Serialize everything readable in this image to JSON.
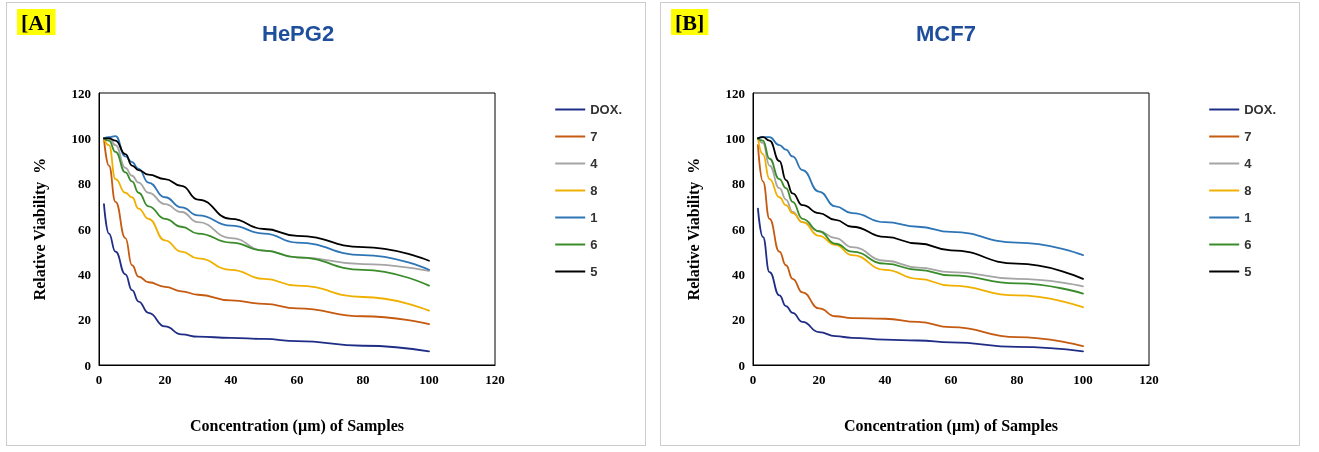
{
  "chart_data": [
    {
      "type": "line",
      "title": "HePG2",
      "xlabel": "Concentration (µm) of Samples",
      "ylabel": "Relative Viability  %",
      "annotations": [
        "[A]"
      ],
      "xlim": [
        0,
        120
      ],
      "xticks": [
        0,
        20,
        40,
        60,
        80,
        100,
        120
      ],
      "ylim": [
        0,
        120
      ],
      "yticks": [
        0,
        20,
        40,
        60,
        80,
        100,
        120
      ],
      "grid": false,
      "legend": "right",
      "marker": "none",
      "line_style": "solid",
      "x": [
        1.5,
        3,
        5,
        8,
        10,
        12,
        15,
        20,
        25,
        30,
        40,
        50,
        60,
        80,
        100
      ],
      "series": [
        {
          "name": "DOX.",
          "color": "#1f2d86",
          "values": [
            71,
            58,
            50,
            40,
            33,
            28,
            23,
            17,
            13.5,
            12.5,
            12,
            11.5,
            10.5,
            8.5,
            6
          ]
        },
        {
          "name": "7",
          "color": "#c55a11",
          "values": [
            100,
            88,
            72,
            56,
            44,
            39,
            36.5,
            34.5,
            32.5,
            31,
            28.5,
            27,
            25,
            21.5,
            18
          ]
        },
        {
          "name": "4",
          "color": "#a5a5a5",
          "values": [
            100,
            100,
            97,
            87,
            83.5,
            80.5,
            76,
            71,
            67.5,
            63,
            56,
            50.5,
            47.5,
            44.5,
            41.5
          ]
        },
        {
          "name": "8",
          "color": "#f0b000",
          "values": [
            100,
            97,
            82,
            76,
            74,
            69,
            64.5,
            55,
            50,
            47,
            42,
            38,
            35,
            30,
            24
          ]
        },
        {
          "name": "1",
          "color": "#2e75b6",
          "values": [
            100,
            100.5,
            101,
            92,
            89.5,
            86.5,
            80.5,
            74,
            69.5,
            66,
            61.5,
            58,
            54,
            48.5,
            42
          ]
        },
        {
          "name": "6",
          "color": "#3a8c2a",
          "values": [
            100,
            99,
            94,
            85,
            81,
            76,
            70,
            64.5,
            61,
            58,
            54,
            50.5,
            47.5,
            42,
            35
          ]
        },
        {
          "name": "5",
          "color": "#000000",
          "values": [
            100,
            100,
            99,
            93,
            88,
            86,
            84,
            82,
            79,
            73,
            64.5,
            60,
            57,
            52,
            46
          ]
        }
      ]
    },
    {
      "type": "line",
      "title": "MCF7",
      "xlabel": "Concentration (µm) of Samples",
      "ylabel": "Relative Viability  %",
      "annotations": [
        "[B]"
      ],
      "xlim": [
        0,
        120
      ],
      "xticks": [
        0,
        20,
        40,
        60,
        80,
        100,
        120
      ],
      "ylim": [
        0,
        120
      ],
      "yticks": [
        0,
        20,
        40,
        60,
        80,
        100,
        120
      ],
      "grid": false,
      "legend": "right",
      "marker": "none",
      "line_style": "solid",
      "x": [
        1.5,
        3,
        5,
        8,
        10,
        12,
        15,
        20,
        25,
        30,
        40,
        50,
        60,
        80,
        100
      ],
      "series": [
        {
          "name": "DOX.",
          "color": "#1f2d86",
          "values": [
            69,
            56.5,
            41,
            30.7,
            26,
            23,
            19,
            14.5,
            12.7,
            12,
            11.2,
            10.8,
            10,
            8,
            6
          ]
        },
        {
          "name": "7",
          "color": "#c55a11",
          "values": [
            97,
            81,
            64.5,
            50,
            44,
            38,
            32,
            25,
            21.5,
            20.7,
            20.4,
            19,
            16.7,
            12.3,
            8.3
          ]
        },
        {
          "name": "4",
          "color": "#a5a5a5",
          "values": [
            100,
            98,
            88,
            78,
            73,
            67.5,
            63,
            59,
            56,
            52,
            46,
            43,
            41,
            38,
            34.7
          ]
        },
        {
          "name": "8",
          "color": "#f0b000",
          "values": [
            100,
            93,
            82,
            74,
            70.5,
            67,
            63,
            57,
            53,
            48.5,
            42,
            38,
            35,
            30.7,
            25.5
          ]
        },
        {
          "name": "1",
          "color": "#2e75b6",
          "values": [
            100,
            100.5,
            100.5,
            97,
            95,
            92,
            86,
            76.5,
            70,
            67,
            63,
            61,
            58.7,
            54,
            48.5
          ]
        },
        {
          "name": "6",
          "color": "#3a8c2a",
          "values": [
            100,
            99,
            91,
            82,
            78,
            72,
            64.5,
            59,
            53.5,
            50,
            44.7,
            42,
            39.5,
            36,
            31.5
          ]
        },
        {
          "name": "5",
          "color": "#000000",
          "values": [
            100,
            100.5,
            99,
            90,
            81.6,
            75.7,
            70.5,
            67,
            64,
            61,
            56.5,
            53.6,
            50.6,
            44.7,
            38
          ]
        }
      ]
    }
  ]
}
